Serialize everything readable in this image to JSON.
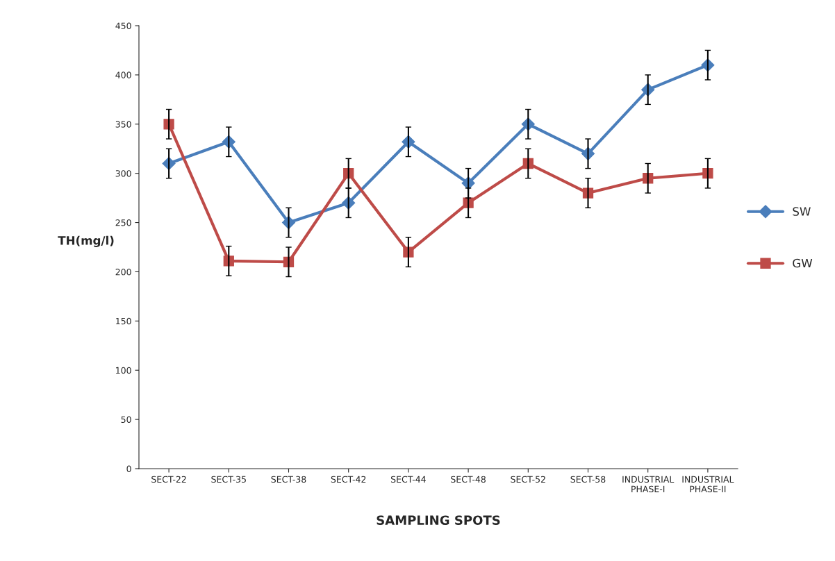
{
  "chart_data": {
    "type": "line",
    "xlabel": "SAMPLING SPOTS",
    "ylabel": "TH(mg/l)",
    "categories": [
      "SECT-22",
      "SECT-35",
      "SECT-38",
      "SECT-42",
      "SECT-44",
      "SECT-48",
      "SECT-52",
      "SECT-58",
      "INDUSTRIAL\nPHASE-I",
      "INDUSTRIAL\nPHASE-II"
    ],
    "series": [
      {
        "name": "SW",
        "color": "#4a7ebb",
        "marker": "diamond",
        "values": [
          310,
          332,
          250,
          270,
          332,
          290,
          350,
          320,
          385,
          410
        ],
        "errors": [
          15,
          15,
          15,
          15,
          15,
          15,
          15,
          15,
          15,
          15
        ]
      },
      {
        "name": "GW",
        "color": "#be4b48",
        "marker": "square",
        "values": [
          350,
          211,
          210,
          300,
          220,
          270,
          310,
          280,
          295,
          300
        ],
        "errors": [
          15,
          15,
          15,
          15,
          15,
          15,
          15,
          15,
          15,
          15
        ]
      }
    ],
    "ylim": [
      0,
      450
    ],
    "yticks": [
      0,
      50,
      100,
      150,
      200,
      250,
      300,
      350,
      400,
      450
    ],
    "grid": false,
    "legend": "right",
    "line_style": "solid"
  }
}
